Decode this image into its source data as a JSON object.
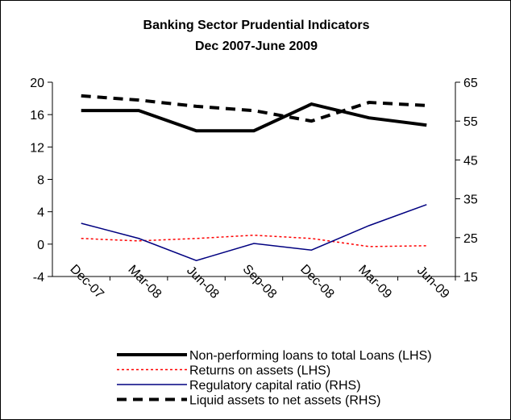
{
  "chart_data": {
    "type": "line",
    "title": "Banking Sector Prudential Indicators",
    "subtitle": "Dec 2007-June 2009",
    "categories": [
      "Dec-07",
      "Mar-08",
      "Jun-08",
      "Sep-08",
      "Dec-08",
      "Mar-09",
      "Jun-09"
    ],
    "series": [
      {
        "name": "Non-performing loans to total Loans (LHS)",
        "color": "#000000",
        "line_style": "thick",
        "values": [
          16.5,
          16.5,
          14,
          14,
          17.3,
          15.6,
          14.7
        ]
      },
      {
        "name": "Returns on assets (LHS)",
        "color": "#ff0000",
        "line_style": "dotted",
        "values": [
          0.7,
          0.4,
          0.7,
          1.1,
          0.7,
          -0.3,
          -0.2
        ]
      },
      {
        "name": "Regulatory capital ratio (RHS)",
        "color": "#000080",
        "line_style": "solid",
        "axis": "y2",
        "values": [
          28.7,
          24.8,
          19.1,
          23.5,
          21.8,
          28.1,
          33.5
        ]
      },
      {
        "name": "Liquid assets to net assets (RHS)",
        "color": "#000000",
        "line_style": "thick-dashed",
        "axis": "y2",
        "values": [
          61.5,
          60.4,
          58.8,
          57.7,
          55,
          59.8,
          59
        ]
      }
    ],
    "ylim": [
      -4,
      20
    ],
    "yticks": [
      -4,
      0,
      4,
      8,
      12,
      16,
      20
    ],
    "y2lim": [
      15,
      65
    ],
    "y2ticks": [
      15,
      25,
      35,
      45,
      55,
      65
    ],
    "legend": "bottom"
  }
}
